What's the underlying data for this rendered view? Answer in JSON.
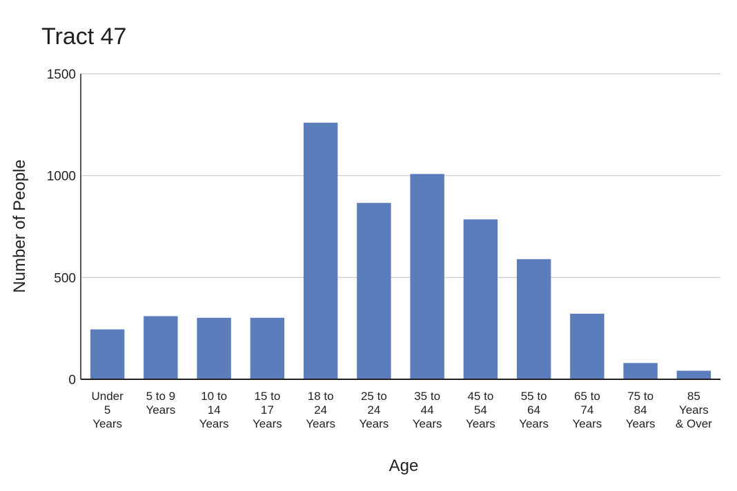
{
  "chart_data": {
    "type": "bar",
    "title": "Tract 47",
    "xlabel": "Age",
    "ylabel": "Number of People",
    "ylim": [
      0,
      1500
    ],
    "yticks": [
      0,
      500,
      1000,
      1500
    ],
    "grid": true,
    "bar_color": "#5b7dbc",
    "categories": [
      [
        "Under",
        "5",
        "Years"
      ],
      [
        "5 to 9",
        "Years"
      ],
      [
        "10 to",
        "14",
        "Years"
      ],
      [
        "15 to",
        "17",
        "Years"
      ],
      [
        "18 to",
        "24",
        "Years"
      ],
      [
        "25 to",
        "24",
        "Years"
      ],
      [
        "35 to",
        "44",
        "Years"
      ],
      [
        "45 to",
        "54",
        "Years"
      ],
      [
        "55 to",
        "64",
        "Years"
      ],
      [
        "65 to",
        "74",
        "Years"
      ],
      [
        "75 to",
        "84",
        "Years"
      ],
      [
        "85",
        "Years",
        "& Over"
      ]
    ],
    "values": [
      245,
      310,
      302,
      302,
      1260,
      866,
      1008,
      785,
      590,
      322,
      80,
      42
    ]
  }
}
